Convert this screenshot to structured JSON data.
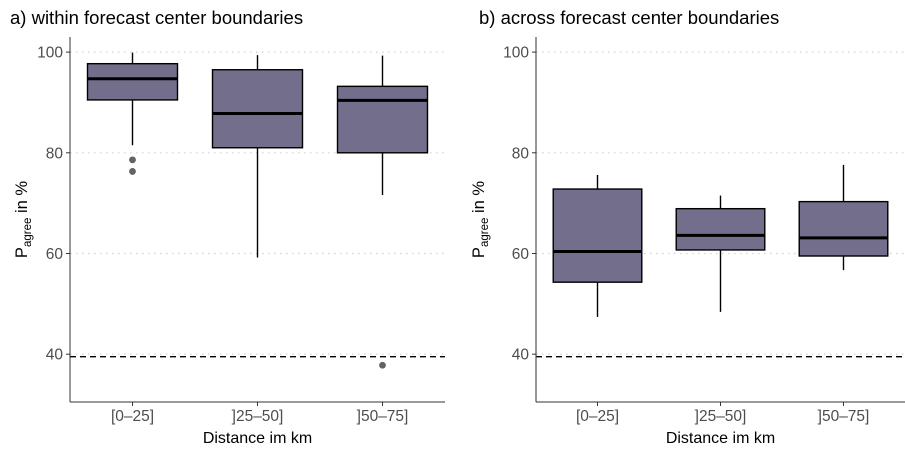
{
  "chart_data": [
    {
      "type": "box",
      "title": "a) within forecast center boundaries",
      "xlabel": "Distance im km",
      "ylabel_main": "P",
      "ylabel_sub": "agree",
      "ylabel_rest": " in %",
      "ylim": [
        30.5,
        103
      ],
      "yticks": [
        40,
        60,
        80,
        100
      ],
      "grid": "horizontal-dotted",
      "reference_line": 39.5,
      "categories": [
        "[0–25]",
        "]25–50]",
        "]50–75]"
      ],
      "boxes": [
        {
          "whisker_low": 81.5,
          "q1": 90.5,
          "median": 94.7,
          "q3": 97.7,
          "whisker_high": 99.9,
          "outliers": [
            78.6,
            76.3
          ]
        },
        {
          "whisker_low": 59.2,
          "q1": 81.0,
          "median": 87.8,
          "q3": 96.5,
          "whisker_high": 99.4,
          "outliers": []
        },
        {
          "whisker_low": 71.6,
          "q1": 80.0,
          "median": 90.4,
          "q3": 93.2,
          "whisker_high": 99.3,
          "outliers": [
            37.8
          ]
        }
      ]
    },
    {
      "type": "box",
      "title": "b) across forecast center boundaries",
      "xlabel": "Distance im km",
      "ylabel_main": "P",
      "ylabel_sub": "agree",
      "ylabel_rest": " in %",
      "ylim": [
        30.5,
        103
      ],
      "yticks": [
        40,
        60,
        80,
        100
      ],
      "grid": "horizontal-dotted",
      "reference_line": 39.5,
      "categories": [
        "[0–25]",
        "]25–50]",
        "]50–75]"
      ],
      "boxes": [
        {
          "whisker_low": 47.4,
          "q1": 54.3,
          "median": 60.4,
          "q3": 72.8,
          "whisker_high": 75.6,
          "outliers": []
        },
        {
          "whisker_low": 48.4,
          "q1": 60.7,
          "median": 63.6,
          "q3": 68.9,
          "whisker_high": 71.5,
          "outliers": []
        },
        {
          "whisker_low": 56.7,
          "q1": 59.5,
          "median": 63.1,
          "q3": 70.3,
          "whisker_high": 77.6,
          "outliers": []
        }
      ]
    }
  ],
  "colors": {
    "box_fill": "#736e8b",
    "box_stroke": "#000000",
    "outlier": "#636363",
    "grid": "#d0d0d0",
    "axis": "#333333",
    "tick_label": "#4d4d4d"
  }
}
